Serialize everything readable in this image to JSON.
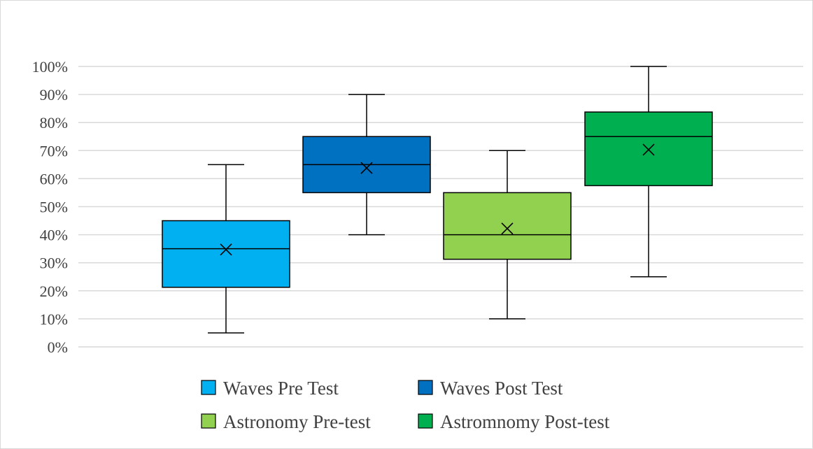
{
  "chart_data": {
    "type": "box",
    "title": "",
    "xlabel": "",
    "ylabel": "",
    "ylim": [
      0,
      100
    ],
    "y_ticks": [
      "0%",
      "10%",
      "20%",
      "30%",
      "40%",
      "50%",
      "60%",
      "70%",
      "80%",
      "90%",
      "100%"
    ],
    "y_tick_values": [
      0,
      10,
      20,
      30,
      40,
      50,
      60,
      70,
      80,
      90,
      100
    ],
    "grid": "horizontal",
    "legend_position": "bottom",
    "series": [
      {
        "name": "Waves Pre Test",
        "color": "#00b0f0",
        "min": 5,
        "q1": 21.25,
        "median": 35,
        "q3": 45,
        "max": 65,
        "mean": 34.7
      },
      {
        "name": "Waves Post Test",
        "color": "#0070c0",
        "min": 40,
        "q1": 55,
        "median": 65,
        "q3": 75,
        "max": 90,
        "mean": 63.8
      },
      {
        "name": "Astronomy Pre-test",
        "color": "#92d050",
        "min": 10,
        "q1": 31.25,
        "median": 40,
        "q3": 55,
        "max": 70,
        "mean": 42.2
      },
      {
        "name": "Astromnomy Post-test",
        "color": "#00b050",
        "min": 25,
        "q1": 57.5,
        "median": 75,
        "q3": 83.75,
        "max": 100,
        "mean": 70.3
      }
    ]
  }
}
